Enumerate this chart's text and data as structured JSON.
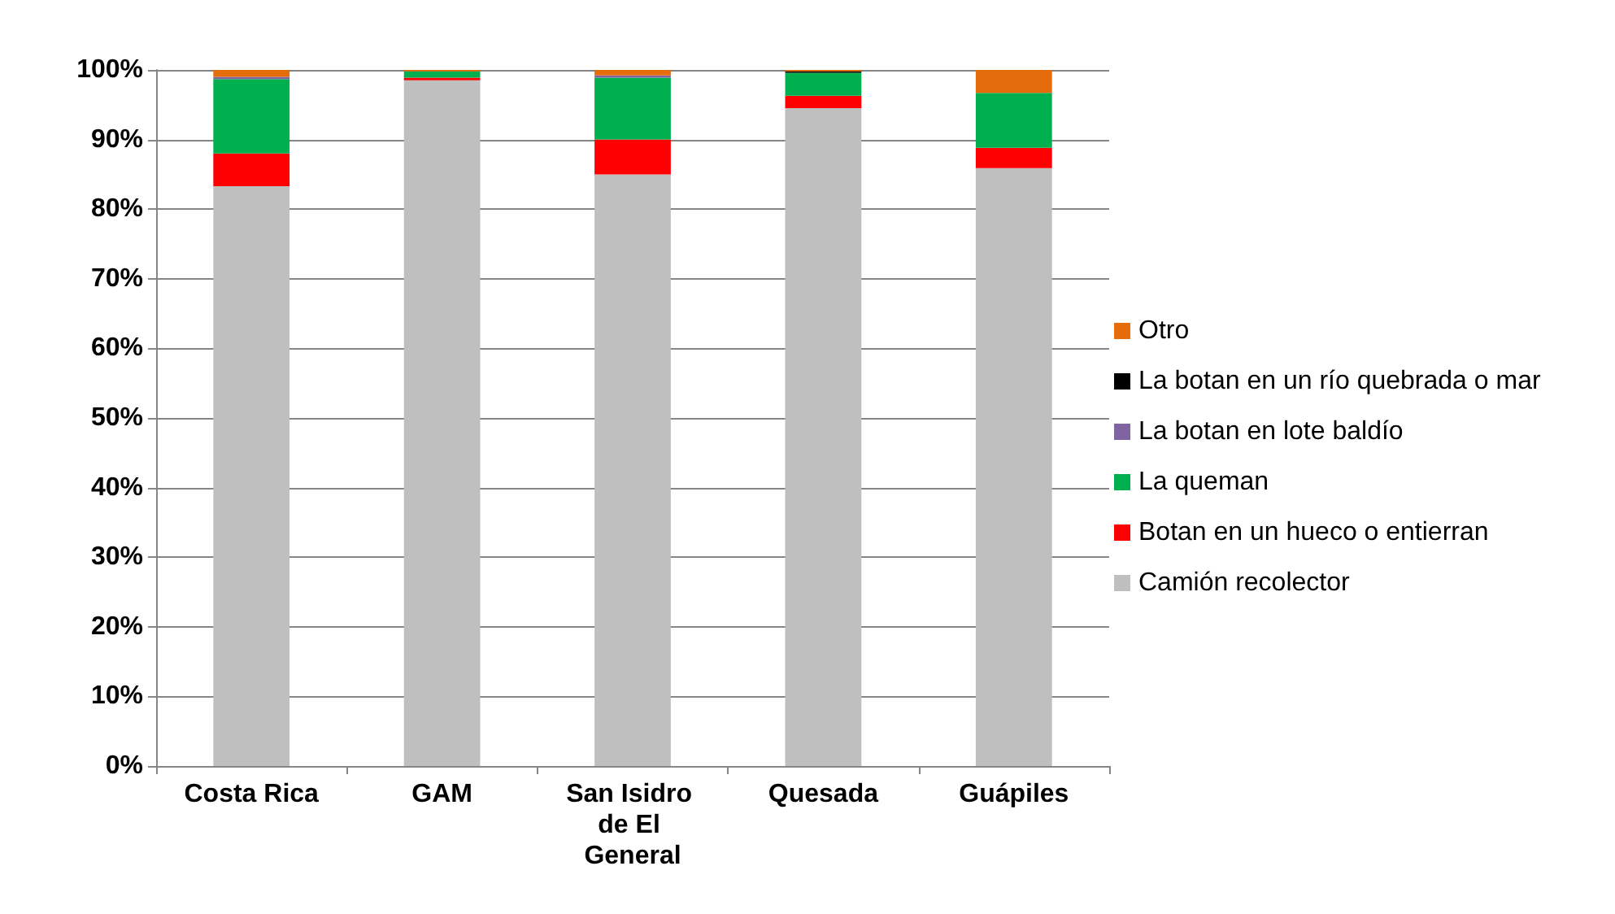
{
  "chart_data": {
    "type": "bar",
    "stacked": true,
    "categories": [
      "Costa Rica",
      "GAM",
      "San Isidro de El General",
      "Quesada",
      "Guápiles"
    ],
    "series": [
      {
        "name": "Camión recolector",
        "color": "#bfbfbf",
        "values": [
          83.3,
          98.5,
          85.0,
          94.5,
          85.9
        ]
      },
      {
        "name": "Botan en un hueco o entierran",
        "color": "#ff0000",
        "values": [
          4.7,
          0.4,
          5.0,
          1.8,
          2.9
        ]
      },
      {
        "name": "La queman",
        "color": "#00b050",
        "values": [
          10.7,
          0.9,
          8.9,
          3.3,
          7.9
        ]
      },
      {
        "name": "La botan en lote baldío",
        "color": "#8064a2",
        "values": [
          0.3,
          0,
          0.3,
          0,
          0
        ]
      },
      {
        "name": "La botan en un río quebrada o mar",
        "color": "#000000",
        "values": [
          0,
          0,
          0,
          0.2,
          0
        ]
      },
      {
        "name": "Otro",
        "color": "#e46c0a",
        "values": [
          1.0,
          0.2,
          0.8,
          0.2,
          3.3
        ]
      }
    ],
    "ylim": [
      0,
      100
    ],
    "yticks": [
      {
        "value": 0,
        "label": "0%"
      },
      {
        "value": 10,
        "label": "10%"
      },
      {
        "value": 20,
        "label": "20%"
      },
      {
        "value": 30,
        "label": "30%"
      },
      {
        "value": 40,
        "label": "40%"
      },
      {
        "value": 50,
        "label": "50%"
      },
      {
        "value": 60,
        "label": "60%"
      },
      {
        "value": 70,
        "label": "70%"
      },
      {
        "value": 80,
        "label": "80%"
      },
      {
        "value": 90,
        "label": "90%"
      },
      {
        "value": 100,
        "label": "100%"
      }
    ],
    "grid": "y",
    "legend": "right"
  }
}
